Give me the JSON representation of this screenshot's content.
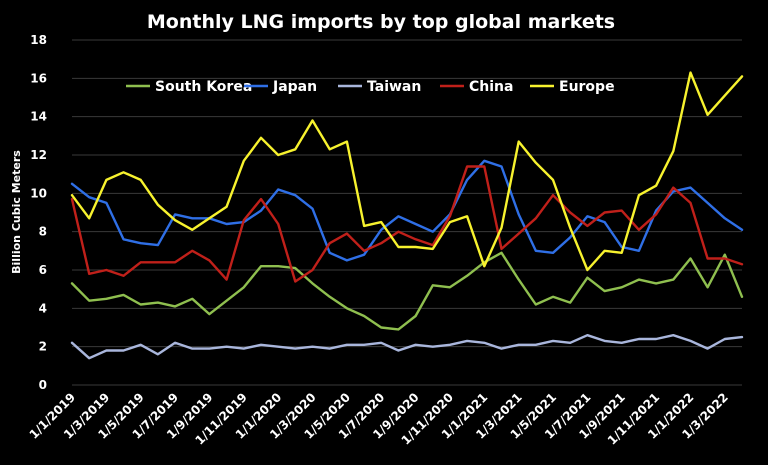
{
  "chart_data": {
    "type": "line",
    "title": "Monthly LNG imports by top global markets",
    "ylabel": "Billion Cubic Meters",
    "xlabel": "",
    "ylim": [
      0,
      18
    ],
    "yticks": [
      "0",
      "2",
      "4",
      "6",
      "8",
      "10",
      "12",
      "14",
      "16",
      "18"
    ],
    "grid": true,
    "legend_position": "top",
    "x_tick_labels": [
      "1/1/2019",
      "1/3/2019",
      "1/5/2019",
      "1/7/2019",
      "1/9/2019",
      "1/11/2019",
      "1/1/2020",
      "1/3/2020",
      "1/5/2020",
      "1/7/2020",
      "1/9/2020",
      "1/11/2020",
      "1/1/2021",
      "1/3/2021",
      "1/5/2021",
      "1/7/2021",
      "1/9/2021",
      "1/11/2021",
      "1/1/2022",
      "1/3/2022"
    ],
    "x": [
      "2019-01",
      "2019-02",
      "2019-03",
      "2019-04",
      "2019-05",
      "2019-06",
      "2019-07",
      "2019-08",
      "2019-09",
      "2019-10",
      "2019-11",
      "2019-12",
      "2020-01",
      "2020-02",
      "2020-03",
      "2020-04",
      "2020-05",
      "2020-06",
      "2020-07",
      "2020-08",
      "2020-09",
      "2020-10",
      "2020-11",
      "2020-12",
      "2021-01",
      "2021-02",
      "2021-03",
      "2021-04",
      "2021-05",
      "2021-06",
      "2021-07",
      "2021-08",
      "2021-09",
      "2021-10",
      "2021-11",
      "2021-12",
      "2022-01",
      "2022-02",
      "2022-03",
      "2022-04"
    ],
    "series": [
      {
        "name": "South Korea",
        "color": "#8fbf4f",
        "values": [
          5.3,
          4.4,
          4.5,
          4.7,
          4.2,
          4.3,
          4.1,
          4.5,
          3.7,
          4.4,
          5.1,
          6.2,
          6.2,
          6.1,
          5.3,
          4.6,
          4.0,
          3.6,
          3.0,
          2.9,
          3.6,
          5.2,
          5.1,
          5.7,
          6.4,
          6.9,
          5.5,
          4.2,
          4.6,
          4.3,
          5.6,
          4.9,
          5.1,
          5.5,
          5.3,
          5.5,
          6.6,
          5.1,
          6.8,
          4.6
        ]
      },
      {
        "name": "Japan",
        "color": "#2f6fe6",
        "values": [
          10.5,
          9.8,
          9.5,
          7.6,
          7.4,
          7.3,
          8.9,
          8.7,
          8.7,
          8.4,
          8.5,
          9.1,
          10.2,
          9.9,
          9.2,
          6.9,
          6.5,
          6.8,
          8.1,
          8.8,
          8.4,
          8.0,
          8.9,
          10.7,
          11.7,
          11.4,
          8.9,
          7.0,
          6.9,
          7.7,
          8.8,
          8.5,
          7.2,
          7.0,
          9.1,
          10.1,
          10.3,
          9.5,
          8.7,
          8.1
        ]
      },
      {
        "name": "Taiwan",
        "color": "#a9b6dc",
        "values": [
          2.2,
          1.4,
          1.8,
          1.8,
          2.1,
          1.6,
          2.2,
          1.9,
          1.9,
          2.0,
          1.9,
          2.1,
          2.0,
          1.9,
          2.0,
          1.9,
          2.1,
          2.1,
          2.2,
          1.8,
          2.1,
          2.0,
          2.1,
          2.3,
          2.2,
          1.9,
          2.1,
          2.1,
          2.3,
          2.2,
          2.6,
          2.3,
          2.2,
          2.4,
          2.4,
          2.6,
          2.3,
          1.9,
          2.4,
          2.5
        ]
      },
      {
        "name": "China",
        "color": "#c0201a",
        "values": [
          9.7,
          5.8,
          6.0,
          5.7,
          6.4,
          6.4,
          6.4,
          7.0,
          6.5,
          5.5,
          8.6,
          9.7,
          8.4,
          5.4,
          6.0,
          7.4,
          7.9,
          7.0,
          7.4,
          8.0,
          7.6,
          7.3,
          8.8,
          11.4,
          11.4,
          7.1,
          7.9,
          8.7,
          9.9,
          9.0,
          8.3,
          9.0,
          9.1,
          8.1,
          8.9,
          10.3,
          9.5,
          6.6,
          6.6,
          6.3
        ]
      },
      {
        "name": "Europe",
        "color": "#f7f22e",
        "values": [
          9.9,
          8.7,
          10.7,
          11.1,
          10.7,
          9.4,
          8.6,
          8.1,
          8.7,
          9.3,
          11.7,
          12.9,
          12.0,
          12.3,
          13.8,
          12.3,
          12.7,
          8.3,
          8.5,
          7.2,
          7.2,
          7.1,
          8.5,
          8.8,
          6.2,
          8.2,
          12.7,
          11.6,
          10.7,
          8.2,
          6.0,
          7.0,
          6.9,
          9.9,
          10.4,
          12.2,
          16.3,
          14.1,
          15.1,
          16.1
        ]
      }
    ]
  }
}
